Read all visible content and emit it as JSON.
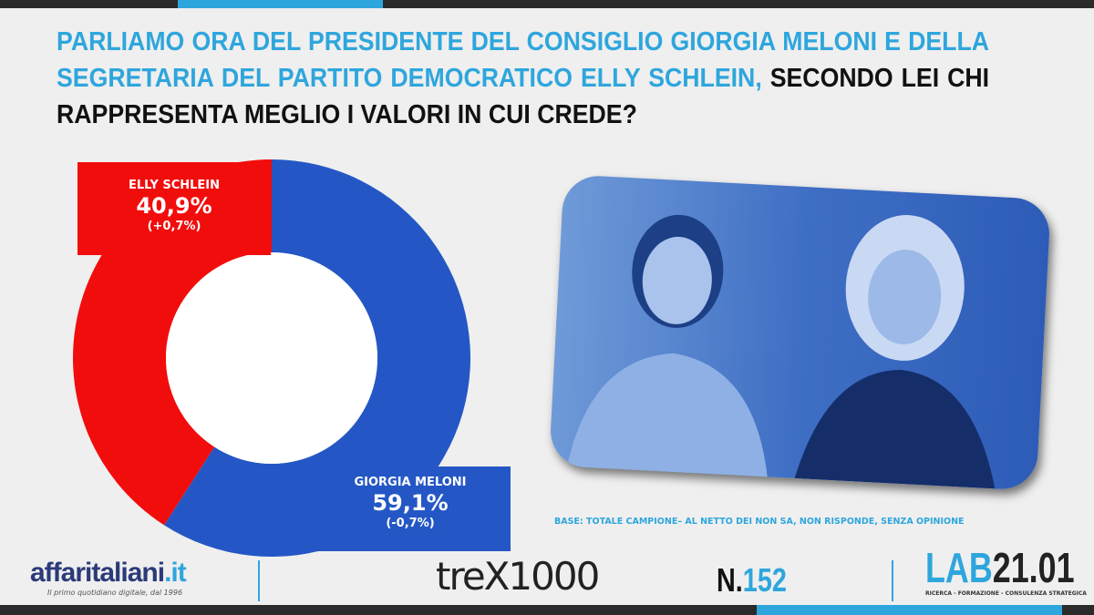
{
  "header": {
    "title_blue": "PARLIAMO ORA DEL PRESIDENTE DEL CONSIGLIO GIORGIA MELONI  E DELLA SEGRETARIA DEL PARTITO DEMOCRATICO ELLY SCHLEIN,",
    "title_black": " SECONDO LEI CHI RAPPRESENTA MEGLIO I VALORI IN CUI CREDE?"
  },
  "chart_data": {
    "type": "pie",
    "donut": true,
    "slices": [
      {
        "name": "ELLY SCHLEIN",
        "value": 40.9,
        "label": "40,9%",
        "change": "(+0,7%)",
        "color": "#f20d0d"
      },
      {
        "name": "GIORGIA MELONI",
        "value": 59.1,
        "label": "59,1%",
        "change": "(-0,7%)",
        "color": "#2457c5"
      }
    ]
  },
  "footnote": "BASE: TOTALE CAMPIONE– AL NETTO DEI NON SA, NON RISPONDE, SENZA OPINIONE",
  "footer": {
    "logo_main": "affaritaliani",
    "logo_ext": ".it",
    "tagline": "Il primo quotidiano digitale, dal 1996",
    "trex": "treX1000",
    "num_prefix": "N.",
    "num": "152",
    "lab_a": "LAB",
    "lab_b": "21.01",
    "lab_sub": "RICERCA - FORMAZIONE - CONSULENZA STRATEGICA"
  }
}
